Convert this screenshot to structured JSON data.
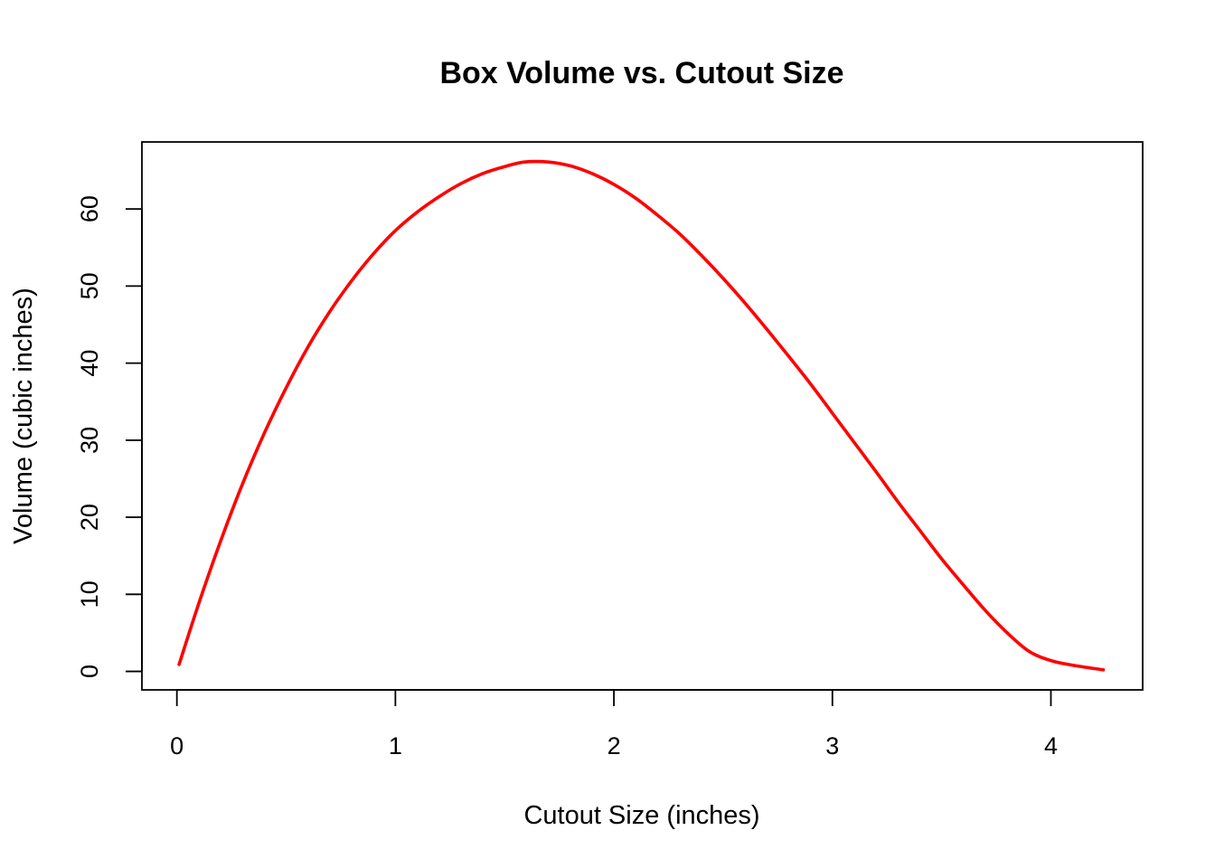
{
  "chart_data": {
    "type": "line",
    "title": "Box Volume vs. Cutout Size",
    "xlabel": "Cutout Size (inches)",
    "ylabel": "Volume (cubic inches)",
    "xlim": [
      -0.16,
      4.42
    ],
    "ylim": [
      -2.4,
      68.7
    ],
    "xticks": [
      0,
      1,
      2,
      3,
      4
    ],
    "yticks": [
      0,
      10,
      20,
      30,
      40,
      50,
      60
    ],
    "grid": false,
    "series": [
      {
        "color": "#ff0000",
        "x": [
          0.01,
          0.1,
          0.2,
          0.3,
          0.4,
          0.5,
          0.6,
          0.7,
          0.8,
          0.9,
          1.0,
          1.1,
          1.2,
          1.3,
          1.4,
          1.5,
          1.59,
          1.7,
          1.8,
          1.9,
          2.0,
          2.1,
          2.2,
          2.3,
          2.4,
          2.5,
          2.6,
          2.7,
          2.8,
          2.9,
          3.0,
          3.1,
          3.2,
          3.3,
          3.4,
          3.5,
          3.6,
          3.7,
          3.8,
          3.9,
          4.0,
          4.1,
          4.24
        ],
        "y": [
          0.9,
          8.8,
          16.9,
          24.3,
          30.9,
          36.8,
          42.1,
          46.7,
          50.7,
          54.2,
          57.2,
          59.6,
          61.6,
          63.3,
          64.6,
          65.5,
          66.1,
          66.1,
          65.6,
          64.6,
          63.2,
          61.4,
          59.2,
          56.8,
          54.0,
          51.0,
          47.8,
          44.4,
          40.9,
          37.3,
          33.5,
          29.7,
          25.9,
          22.0,
          18.3,
          14.6,
          11.2,
          7.9,
          5.0,
          2.6,
          1.4,
          0.8,
          0.2
        ]
      }
    ]
  }
}
